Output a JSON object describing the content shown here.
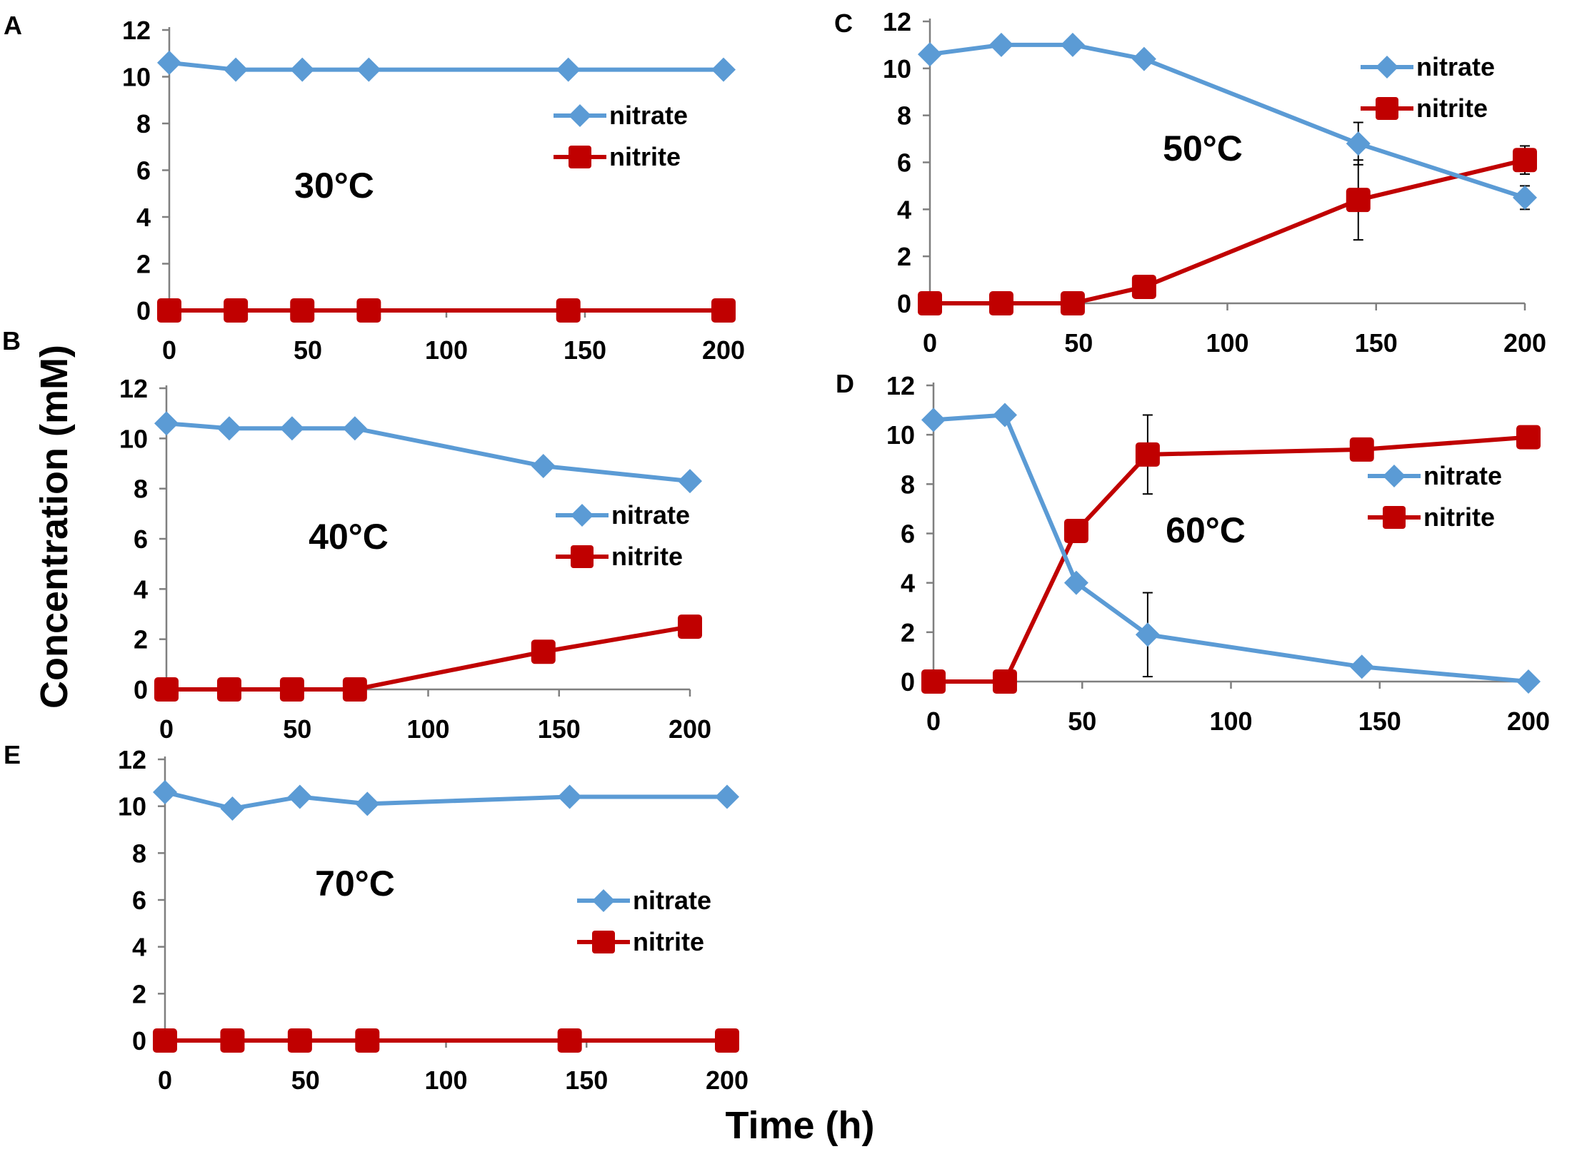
{
  "figure": {
    "ylabel": "Concentration (mM)",
    "xlabel": "Time (h)"
  },
  "colors": {
    "nitrate": "#5B9BD5",
    "nitrite": "#C00000",
    "axis": "#7F7F7F",
    "text": "#000000"
  },
  "chart_data": [
    {
      "panel": "A",
      "type": "line",
      "annotation": "30°C",
      "legend_position": "right-middle",
      "xlim": [
        0,
        200
      ],
      "xticks": [
        0,
        50,
        100,
        150,
        200
      ],
      "ylim": [
        0,
        12
      ],
      "yticks": [
        0,
        2,
        4,
        6,
        8,
        10,
        12
      ],
      "x": [
        0,
        24,
        48,
        72,
        144,
        200
      ],
      "series": [
        {
          "name": "nitrate",
          "marker": "diamond",
          "values": [
            10.6,
            10.3,
            10.3,
            10.3,
            10.3,
            10.3
          ]
        },
        {
          "name": "nitrite",
          "marker": "square",
          "values": [
            0,
            0,
            0,
            0,
            0,
            0
          ]
        }
      ]
    },
    {
      "panel": "B",
      "type": "line",
      "annotation": "40°C",
      "legend_position": "right-middle",
      "xlim": [
        0,
        200
      ],
      "xticks": [
        0,
        50,
        100,
        150,
        200
      ],
      "ylim": [
        0,
        12
      ],
      "yticks": [
        0,
        2,
        4,
        6,
        8,
        10,
        12
      ],
      "x": [
        0,
        24,
        48,
        72,
        144,
        200
      ],
      "series": [
        {
          "name": "nitrate",
          "marker": "diamond",
          "values": [
            10.6,
            10.4,
            10.4,
            10.4,
            8.9,
            8.3
          ]
        },
        {
          "name": "nitrite",
          "marker": "square",
          "values": [
            0,
            0,
            0,
            0,
            1.5,
            2.5
          ]
        }
      ]
    },
    {
      "panel": "C",
      "type": "line",
      "annotation": "50°C",
      "legend_position": "top-right",
      "xlim": [
        0,
        200
      ],
      "xticks": [
        0,
        50,
        100,
        150,
        200
      ],
      "ylim": [
        0,
        12
      ],
      "yticks": [
        0,
        2,
        4,
        6,
        8,
        10,
        12
      ],
      "x": [
        0,
        24,
        48,
        72,
        144,
        200
      ],
      "series": [
        {
          "name": "nitrate",
          "marker": "diamond",
          "values": [
            10.6,
            11.0,
            11.0,
            10.4,
            6.8,
            4.5
          ],
          "errors": [
            0,
            0,
            0,
            0,
            0.9,
            0.5
          ]
        },
        {
          "name": "nitrite",
          "marker": "square",
          "values": [
            0,
            0,
            0,
            0.7,
            4.4,
            6.1
          ],
          "errors": [
            0,
            0,
            0,
            0,
            1.7,
            0.6
          ]
        }
      ]
    },
    {
      "panel": "D",
      "type": "line",
      "annotation": "60°C",
      "legend_position": "right-middle",
      "xlim": [
        0,
        200
      ],
      "xticks": [
        0,
        50,
        100,
        150,
        200
      ],
      "ylim": [
        0,
        12
      ],
      "yticks": [
        0,
        2,
        4,
        6,
        8,
        10,
        12
      ],
      "x": [
        0,
        24,
        48,
        72,
        144,
        200
      ],
      "series": [
        {
          "name": "nitrate",
          "marker": "diamond",
          "values": [
            10.6,
            10.8,
            4.0,
            1.9,
            0.6,
            0
          ],
          "errors": [
            0,
            0,
            0,
            1.7,
            0,
            0
          ]
        },
        {
          "name": "nitrite",
          "marker": "square",
          "values": [
            0,
            0,
            6.1,
            9.2,
            9.4,
            9.9
          ],
          "errors": [
            0,
            0,
            0,
            1.6,
            0,
            0
          ]
        }
      ]
    },
    {
      "panel": "E",
      "type": "line",
      "annotation": "70°C",
      "legend_position": "right-middle",
      "xlim": [
        0,
        200
      ],
      "xticks": [
        0,
        50,
        100,
        150,
        200
      ],
      "ylim": [
        0,
        12
      ],
      "yticks": [
        0,
        2,
        4,
        6,
        8,
        10,
        12
      ],
      "x": [
        0,
        24,
        48,
        72,
        144,
        200
      ],
      "series": [
        {
          "name": "nitrate",
          "marker": "diamond",
          "values": [
            10.6,
            9.9,
            10.4,
            10.1,
            10.4,
            10.4
          ]
        },
        {
          "name": "nitrite",
          "marker": "square",
          "values": [
            0,
            0,
            0,
            0,
            0,
            0
          ]
        }
      ]
    }
  ]
}
